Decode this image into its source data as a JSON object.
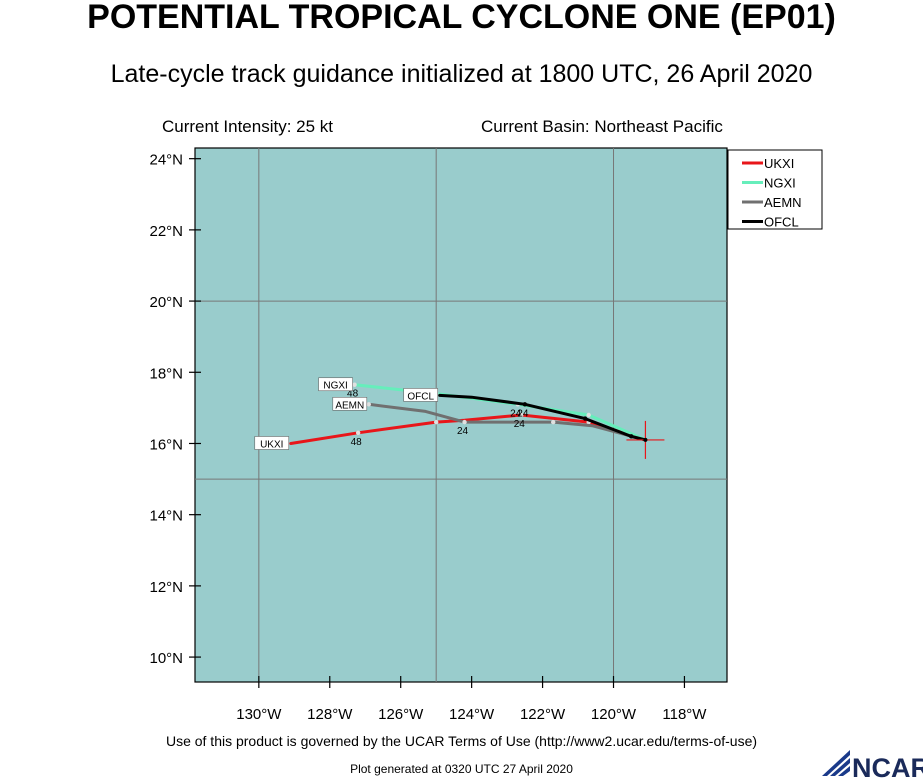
{
  "header": {
    "title": "POTENTIAL TROPICAL CYCLONE ONE (EP01)",
    "subtitle": "Late-cycle track guidance initialized at 1800 UTC, 26 April 2020",
    "intensity": "Current Intensity: 25 kt",
    "basin": "Current Basin: Northeast Pacific"
  },
  "footer": {
    "terms": "Use of this product is governed by the UCAR Terms of Use (http://www2.ucar.edu/terms-of-use)",
    "generated": "Plot generated at 0320 UTC   27 April 2020",
    "logo_text": "NCAR"
  },
  "colors": {
    "ocean": "#99cccc",
    "grid": "#777777",
    "UKXI": "#e8161a",
    "NGXI": "#66eebb",
    "AEMN": "#707070",
    "OFCL": "#000000"
  },
  "chart_data": {
    "type": "line",
    "title": "POTENTIAL TROPICAL CYCLONE ONE (EP01)",
    "xlim": [
      -131.8,
      -116.8
    ],
    "ylim": [
      9.3,
      24.3
    ],
    "x_ticks": [
      {
        "value": -130,
        "label": "130°W"
      },
      {
        "value": -128,
        "label": "128°W"
      },
      {
        "value": -126,
        "label": "126°W"
      },
      {
        "value": -124,
        "label": "124°W"
      },
      {
        "value": -122,
        "label": "122°W"
      },
      {
        "value": -120,
        "label": "120°W"
      },
      {
        "value": -118,
        "label": "118°W"
      }
    ],
    "y_ticks": [
      {
        "value": 10,
        "label": "10°N"
      },
      {
        "value": 12,
        "label": "12°N"
      },
      {
        "value": 14,
        "label": "14°N"
      },
      {
        "value": 16,
        "label": "16°N"
      },
      {
        "value": 18,
        "label": "18°N"
      },
      {
        "value": 20,
        "label": "20°N"
      },
      {
        "value": 22,
        "label": "22°N"
      },
      {
        "value": 24,
        "label": "24°N"
      }
    ],
    "grid_lon": [
      -130,
      -125,
      -120
    ],
    "grid_lat": [
      15,
      20
    ],
    "legend_position": "top-right",
    "current_position": {
      "lon": -119.1,
      "lat": 16.1
    },
    "series": [
      {
        "name": "UKXI",
        "points": [
          [
            -119.1,
            16.1
          ],
          [
            -120.7,
            16.6
          ],
          [
            -122.6,
            16.8
          ],
          [
            -124.2,
            16.65
          ],
          [
            -125.0,
            16.6
          ],
          [
            -127.2,
            16.3
          ],
          [
            -129.1,
            16.0
          ]
        ],
        "markers": [
          [
            -120.7,
            16.6
          ],
          [
            -122.6,
            16.8
          ],
          [
            -125.0,
            16.6
          ],
          [
            -127.2,
            16.3
          ]
        ],
        "hour_labels": [
          {
            "text": "24",
            "lon": -122.6,
            "lat": 16.8
          },
          {
            "text": "48",
            "lon": -127.2,
            "lat": 16.3
          }
        ],
        "end_label": "UKXI"
      },
      {
        "name": "NGXI",
        "points": [
          [
            -119.1,
            16.1
          ],
          [
            -120.7,
            16.8
          ],
          [
            -122.7,
            17.1
          ],
          [
            -125.0,
            17.4
          ],
          [
            -127.3,
            17.65
          ]
        ],
        "markers": [
          [
            -120.7,
            16.8
          ],
          [
            -122.7,
            17.1
          ],
          [
            -125.0,
            17.4
          ],
          [
            -127.3,
            17.65
          ]
        ],
        "hour_labels": [
          {
            "text": "24",
            "lon": -122.7,
            "lat": 17.1
          },
          {
            "text": "48",
            "lon": -127.3,
            "lat": 17.65
          }
        ],
        "end_label": "NGXI"
      },
      {
        "name": "AEMN",
        "points": [
          [
            -119.1,
            16.1
          ],
          [
            -120.6,
            16.5
          ],
          [
            -121.7,
            16.6
          ],
          [
            -124.2,
            16.6
          ],
          [
            -125.3,
            16.9
          ],
          [
            -126.9,
            17.1
          ]
        ],
        "markers": [
          [
            -121.7,
            16.6
          ],
          [
            -124.2,
            16.6
          ],
          [
            -126.9,
            17.1
          ]
        ],
        "hour_labels": [
          {
            "text": "24",
            "lon": -124.2,
            "lat": 16.6
          }
        ],
        "end_label": "AEMN"
      },
      {
        "name": "OFCL",
        "points": [
          [
            -119.1,
            16.1
          ],
          [
            -119.5,
            16.2
          ],
          [
            -120.8,
            16.7
          ],
          [
            -122.5,
            17.1
          ],
          [
            -124.0,
            17.3
          ],
          [
            -124.9,
            17.35
          ]
        ],
        "markers": [
          [
            -119.5,
            16.2
          ],
          [
            -120.8,
            16.7
          ],
          [
            -122.5,
            17.1
          ]
        ],
        "hour_labels": [
          {
            "text": "24",
            "lon": -122.5,
            "lat": 17.1
          }
        ],
        "end_label": "OFCL"
      }
    ]
  }
}
